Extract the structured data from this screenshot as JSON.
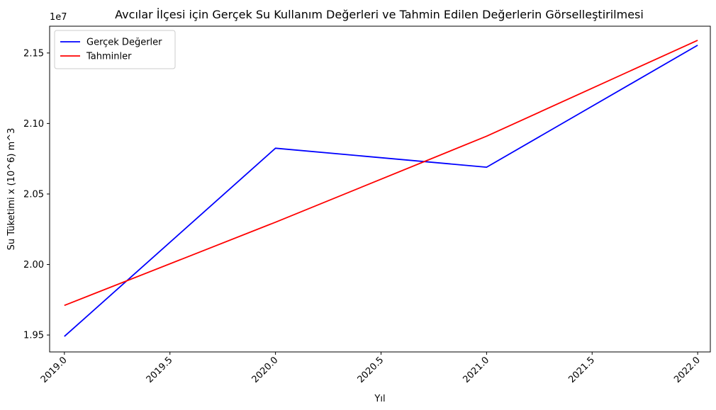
{
  "chart_data": {
    "type": "line",
    "title": "Avcılar İlçesi için Gerçek Su Kullanım Değerleri ve Tahmin Edilen Değerlerin Görselleştirilmesi",
    "xlabel": "Yıl",
    "ylabel": "Su Tüketimi x (10^6) m^3",
    "offset_label": "1e7",
    "xlim": [
      2018.93,
      2022.06
    ],
    "ylim": [
      19380000,
      21690000
    ],
    "x_ticks": [
      2019.0,
      2019.5,
      2020.0,
      2020.5,
      2021.0,
      2021.5,
      2022.0
    ],
    "x_tick_labels": [
      "2019.0",
      "2019.5",
      "2020.0",
      "2020.5",
      "2021.0",
      "2021.5",
      "2022.0"
    ],
    "y_ticks": [
      19500000,
      20000000,
      20500000,
      21000000,
      21500000
    ],
    "y_tick_labels": [
      "1.95",
      "2.00",
      "2.05",
      "2.10",
      "2.15"
    ],
    "grid": false,
    "legend_position": "top-left",
    "series": [
      {
        "name": "Gerçek Değerler",
        "color": "#0000ff",
        "x": [
          2019,
          2020,
          2021,
          2022
        ],
        "values": [
          19490000,
          20825000,
          20690000,
          21555000
        ]
      },
      {
        "name": "Tahminler",
        "color": "#ff0000",
        "x": [
          2019,
          2020,
          2021,
          2022
        ],
        "values": [
          19710000,
          20300000,
          20910000,
          21590000
        ]
      }
    ]
  }
}
